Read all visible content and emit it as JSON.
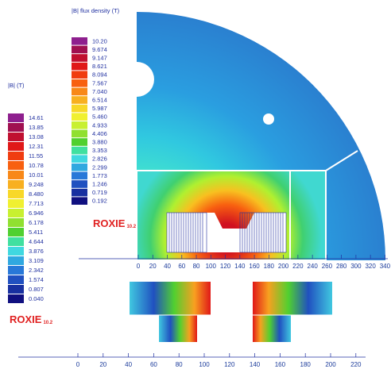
{
  "colorbar_top": {
    "title": "|B| flux density (T)",
    "labels": [
      "10.20",
      "9.674",
      "9.147",
      "8.621",
      "8.094",
      "7.567",
      "7.040",
      "6.514",
      "5.987",
      "5.460",
      "4.933",
      "4.406",
      "3.880",
      "3.353",
      "2.826",
      "2.299",
      "1.773",
      "1.246",
      "0.719",
      "0.192"
    ]
  },
  "colorbar_left": {
    "title": "|B|  (T)",
    "labels": [
      "14.61",
      "13.85",
      "13.08",
      "12.31",
      "11.55",
      "10.78",
      "10.01",
      "9.248",
      "8.480",
      "7.713",
      "6.946",
      "6.178",
      "5.411",
      "4.644",
      "3.876",
      "3.109",
      "2.342",
      "1.574",
      "0.807",
      "0.040"
    ]
  },
  "logo_top": {
    "name": "ROXIE",
    "version": "10.2"
  },
  "logo_left": {
    "name": "ROXIE",
    "version": "10.2"
  },
  "axis_top": {
    "ticks": [
      0,
      20,
      40,
      60,
      80,
      100,
      120,
      140,
      160,
      180,
      200,
      220,
      240,
      260,
      280,
      300,
      320,
      340
    ]
  },
  "axis_bottom": {
    "ticks": [
      0,
      20,
      40,
      60,
      80,
      100,
      120,
      140,
      160,
      180,
      200,
      220
    ]
  }
}
